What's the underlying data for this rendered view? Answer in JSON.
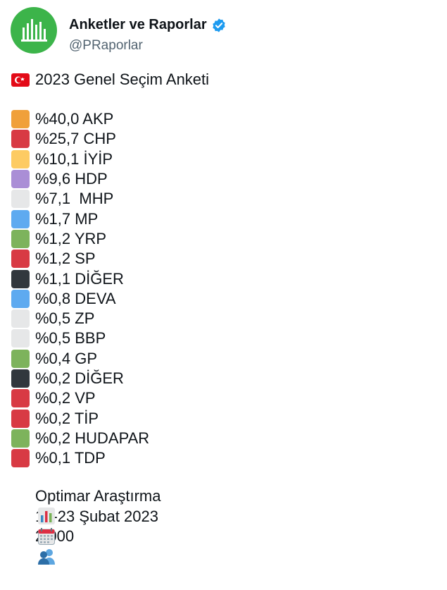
{
  "author": {
    "name": "Anketler ve Raporlar",
    "handle": "@PRaporlar"
  },
  "post": {
    "title": "2023 Genel Seçim Anketi",
    "title_icon": "turkey-flag-icon",
    "parties": [
      {
        "label": "%40,0 AKP",
        "color": "#f0a03a"
      },
      {
        "label": "%25,7 CHP",
        "color": "#d83a44"
      },
      {
        "label": "%10,1 İYİP",
        "color": "#fdcb63"
      },
      {
        "label": "%9,6 HDP",
        "color": "#aa8ed6"
      },
      {
        "label": "%7,1  MHP",
        "color": "#e6e7e8"
      },
      {
        "label": "%1,7 MP",
        "color": "#5eaaf0"
      },
      {
        "label": "%1,2 YRP",
        "color": "#7db35c"
      },
      {
        "label": "%1,2 SP",
        "color": "#d83a44"
      },
      {
        "label": "%1,1 DİĞER",
        "color": "#31373d"
      },
      {
        "label": "%0,8 DEVA",
        "color": "#5eaaf0"
      },
      {
        "label": "%0,5 ZP",
        "color": "#e6e7e8"
      },
      {
        "label": "%0,5 BBP",
        "color": "#e6e7e8"
      },
      {
        "label": "%0,4 GP",
        "color": "#7db35c"
      },
      {
        "label": "%0,2 DİĞER",
        "color": "#31373d"
      },
      {
        "label": "%0,2 VP",
        "color": "#d83a44"
      },
      {
        "label": "%0,2 TİP",
        "color": "#d83a44"
      },
      {
        "label": "%0,2 HUDAPAR",
        "color": "#7db35c"
      },
      {
        "label": "%0,1 TDP",
        "color": "#d83a44"
      }
    ],
    "footer": [
      {
        "icon": "bar-chart-icon",
        "text": "Optimar Araştırma"
      },
      {
        "icon": "calendar-icon",
        "text": "19-23 Şubat 2023"
      },
      {
        "icon": "people-icon",
        "text": "2.000"
      }
    ]
  }
}
